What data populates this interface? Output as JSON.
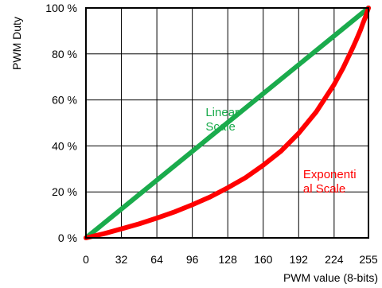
{
  "chart_data": {
    "type": "line",
    "title": "",
    "xlabel": "PWM value (8-bits)",
    "ylabel": "PWM Duty",
    "xlim": [
      0,
      255
    ],
    "ylim": [
      0,
      100
    ],
    "x_ticks": [
      0,
      32,
      64,
      96,
      128,
      160,
      192,
      224,
      255
    ],
    "x_tick_labels": [
      "0",
      "32",
      "64",
      "96",
      "128",
      "160",
      "192",
      "224",
      "255"
    ],
    "y_ticks": [
      0,
      20,
      40,
      60,
      80,
      100
    ],
    "y_tick_labels": [
      "0 %",
      "20 %",
      "40 %",
      "60 %",
      "80 %",
      "100 %"
    ],
    "grid": true,
    "series": [
      {
        "name": "",
        "color": "#1aab4c",
        "x": [
          0,
          255
        ],
        "y": [
          0,
          100
        ]
      },
      {
        "name": "",
        "color": "#ff0000",
        "x": [
          0,
          16,
          32,
          48,
          64,
          80,
          96,
          112,
          128,
          144,
          160,
          176,
          192,
          208,
          224,
          232,
          240,
          244,
          248,
          250,
          252,
          254,
          255
        ],
        "y": [
          0,
          1.8,
          3.9,
          6.1,
          8.6,
          11.3,
          14.4,
          17.8,
          21.8,
          26.2,
          31.6,
          37.7,
          45.5,
          54.9,
          66.7,
          73.8,
          81.8,
          86.1,
          90.7,
          93.3,
          95.7,
          98.6,
          100
        ]
      }
    ],
    "annotations": [
      {
        "id": "linear",
        "lines": [
          "Linear",
          "Scale"
        ],
        "color": "#1aab4c",
        "x": 108,
        "y": 53
      },
      {
        "id": "exp",
        "lines": [
          "Exponenti",
          "al Scale"
        ],
        "color": "#ff0000",
        "x": 196,
        "y": 26
      }
    ]
  }
}
